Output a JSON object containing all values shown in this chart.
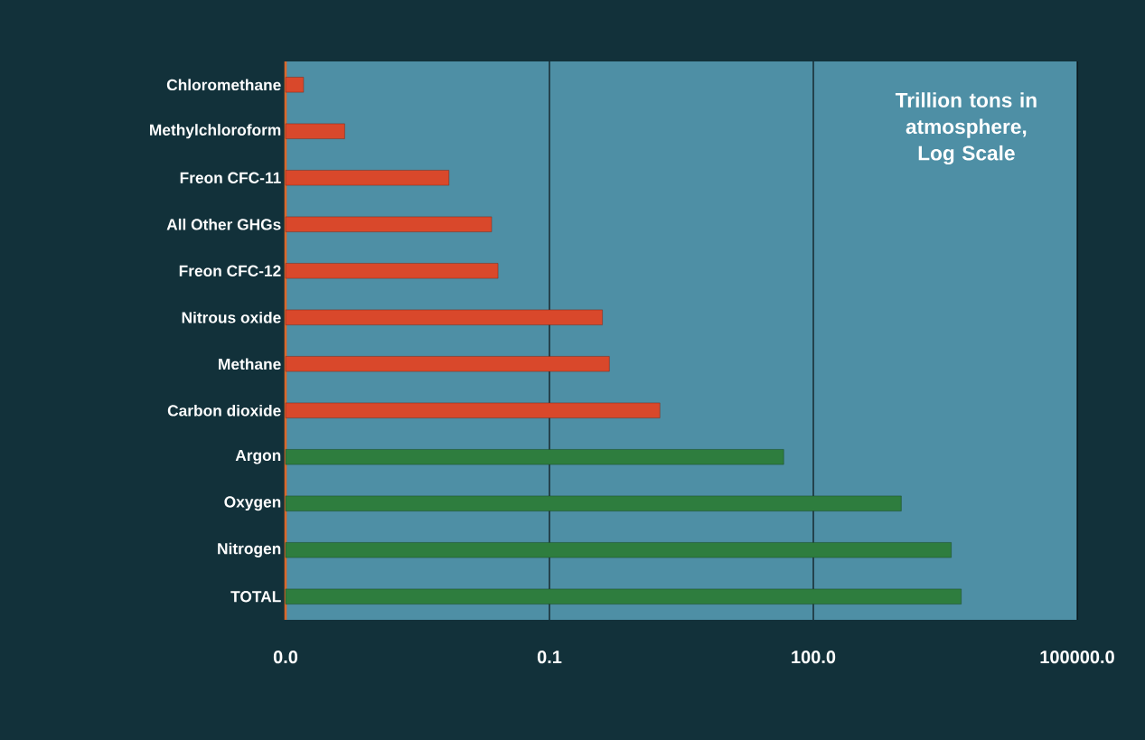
{
  "chart_data": {
    "type": "bar",
    "orientation": "horizontal",
    "log": "x",
    "grid": "x",
    "categories": [
      "Chloromethane",
      "Methylchloroform",
      "Freon CFC-11",
      "All Other GHGs",
      "Freon CFC-12",
      "Nitrous oxide",
      "Methane",
      "Carbon dioxide",
      "Argon",
      "Oxygen",
      "Nitrogen",
      "TOTAL"
    ],
    "values": [
      0.00016,
      0.00047,
      0.0072,
      0.022,
      0.026,
      0.4,
      0.48,
      1.8,
      46,
      1000,
      3700,
      4800
    ],
    "colors": [
      "#d9482b",
      "#d9482b",
      "#d9482b",
      "#d9482b",
      "#d9482b",
      "#d9482b",
      "#d9482b",
      "#d9482b",
      "#2e7d3e",
      "#2e7d3e",
      "#2e7d3e",
      "#2e7d3e"
    ],
    "xlim": [
      0.0001,
      100000
    ],
    "xticks": [
      {
        "value": 0.0001,
        "label": "0.0"
      },
      {
        "value": 0.1,
        "label": "0.1"
      },
      {
        "value": 100,
        "label": "100.0"
      },
      {
        "value": 100000,
        "label": "100000.0"
      }
    ],
    "annotations": [
      "Trillion tons in atmosphere, Log Scale"
    ]
  }
}
